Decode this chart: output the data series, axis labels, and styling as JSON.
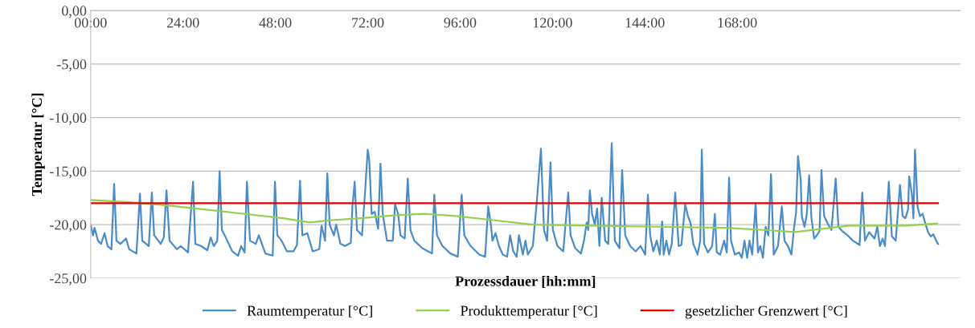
{
  "chart_data": {
    "type": "line",
    "xlabel": "Prozessdauer [hh:mm]",
    "ylabel": "Temperatur [°C]",
    "xlim": [
      0,
      226
    ],
    "xticks": [
      {
        "value": 0,
        "label": "00:00"
      },
      {
        "value": 24,
        "label": "24:00"
      },
      {
        "value": 48,
        "label": "48:00"
      },
      {
        "value": 72,
        "label": "72:00"
      },
      {
        "value": 96,
        "label": "96:00"
      },
      {
        "value": 120,
        "label": "120:00"
      },
      {
        "value": 144,
        "label": "144:00"
      },
      {
        "value": 168,
        "label": "168:00"
      }
    ],
    "ylim": [
      -25,
      0
    ],
    "yticks": [
      {
        "value": 0,
        "label": "0,00"
      },
      {
        "value": -5,
        "label": "-5,00"
      },
      {
        "value": -10,
        "label": "-10,00"
      },
      {
        "value": -15,
        "label": "-15,00"
      },
      {
        "value": -20,
        "label": "-20,00"
      },
      {
        "value": -25,
        "label": "-25,00"
      }
    ],
    "grid": "y",
    "legend": "bottom",
    "marker": "none",
    "line_style": "solid",
    "series": [
      {
        "name": "Raumtemperatur [°C]",
        "color": "#4a8cc8",
        "x": [
          0,
          0.6,
          1.0,
          1.9,
          2.7,
          3.6,
          4.4,
          5.4,
          6.1,
          6.7,
          7.7,
          9.2,
          10.0,
          11.9,
          12.8,
          13.4,
          15.1,
          15.9,
          16.5,
          18.2,
          19.0,
          19.7,
          20.5,
          22.4,
          23.4,
          25.3,
          26.6,
          27.2,
          28.7,
          30.3,
          31.2,
          32.0,
          32.9,
          33.5,
          34.1,
          35.1,
          36.8,
          38.3,
          39.1,
          40.0,
          40.6,
          41.4,
          42.9,
          43.7,
          45.4,
          47.3,
          47.9,
          48.5,
          49.6,
          51.0,
          52.7,
          53.6,
          54.4,
          55.0,
          56.3,
          57.7,
          59.4,
          60.0,
          60.9,
          61.5,
          62.1,
          63.2,
          63.8,
          64.9,
          66.1,
          67.6,
          68.0,
          68.6,
          69.2,
          70.5,
          71.3,
          72.0,
          72.4,
          73.0,
          73.8,
          74.7,
          75.3,
          75.9,
          77.0,
          78.5,
          79.1,
          79.9,
          80.5,
          81.6,
          82.4,
          83.1,
          84.1,
          86.2,
          87.7,
          88.7,
          89.3,
          90.0,
          91.4,
          93.5,
          95.4,
          96.4,
          97.1,
          98.7,
          101.0,
          102.5,
          103.3,
          104.0,
          104.4,
          105.2,
          106.1,
          107.1,
          108.2,
          109.0,
          109.8,
          110.7,
          111.3,
          112.3,
          113.0,
          113.6,
          114.9,
          115.9,
          117.0,
          117.8,
          118.6,
          119.5,
          120.1,
          121.3,
          122.8,
          124.1,
          124.7,
          125.9,
          127.4,
          128.2,
          128.9,
          129.3,
          129.7,
          130.3,
          131.0,
          131.6,
          132.2,
          132.8,
          133.7,
          134.5,
          135.4,
          136.2,
          137.4,
          138.1,
          138.9,
          140.2,
          141.6,
          142.9,
          144.1,
          144.8,
          145.4,
          146.2,
          147.1,
          147.9,
          148.5,
          148.9,
          149.6,
          150.3,
          151.0,
          151.9,
          152.8,
          153.5,
          154.5,
          155.2,
          155.9,
          156.6,
          157.7,
          158.4,
          158.8,
          159.4,
          160.4,
          161.5,
          162.2,
          162.7,
          163.6,
          164.6,
          165.3,
          165.9,
          166.4,
          167.4,
          168.5,
          169.2,
          169.9,
          170.6,
          171.2,
          171.9,
          172.8,
          173.4,
          174.0,
          174.7,
          175.4,
          176.1,
          176.8,
          177.5,
          178.6,
          179.6,
          180.3,
          181.2,
          182.1,
          182.8,
          183.3,
          183.8,
          184.5,
          184.8,
          185.5,
          186.1,
          186.7,
          187.3,
          188.0,
          188.7,
          189.4,
          189.9,
          190.6,
          191.5,
          192.5,
          193.6,
          194.3,
          195.3,
          196.7,
          198.1,
          199.8,
          200.5,
          201.2,
          202.3,
          203.7,
          204.4,
          205.1,
          205.8,
          206.4,
          207.4,
          208.2,
          209.2,
          210.3,
          211.0,
          211.7,
          212.4,
          212.7,
          213.4,
          213.8,
          214.2,
          214.9,
          215.5,
          216.2,
          216.9,
          217.6,
          218.3,
          219.0,
          219.7,
          220.2
        ],
        "values": [
          -20.0,
          -21.0,
          -20.3,
          -21.5,
          -21.8,
          -20.8,
          -22.0,
          -22.3,
          -16.2,
          -21.5,
          -21.8,
          -21.3,
          -22.3,
          -22.7,
          -17.1,
          -21.5,
          -22.0,
          -17.0,
          -21.0,
          -21.8,
          -21.2,
          -16.8,
          -21.5,
          -22.3,
          -22.0,
          -22.6,
          -16.0,
          -21.8,
          -22.0,
          -22.4,
          -21.2,
          -22.0,
          -21.5,
          -15.0,
          -20.5,
          -21.2,
          -22.5,
          -22.9,
          -22.0,
          -22.6,
          -16.0,
          -21.5,
          -21.8,
          -21.0,
          -22.7,
          -22.9,
          -16.0,
          -21.0,
          -21.5,
          -22.5,
          -22.5,
          -21.9,
          -15.9,
          -21.0,
          -20.8,
          -22.5,
          -22.3,
          -20.1,
          -21.5,
          -15.2,
          -20.0,
          -21.0,
          -20.0,
          -21.8,
          -22.0,
          -21.7,
          -18.4,
          -16.0,
          -20.5,
          -21.0,
          -17.0,
          -13.0,
          -14.0,
          -19.0,
          -18.8,
          -20.4,
          -14.3,
          -19.0,
          -21.5,
          -21.5,
          -18.1,
          -19.0,
          -21.0,
          -21.3,
          -15.7,
          -20.5,
          -21.5,
          -22.2,
          -22.5,
          -22.7,
          -17.2,
          -21.0,
          -22.0,
          -22.7,
          -23.0,
          -17.2,
          -21.0,
          -22.0,
          -22.8,
          -23.0,
          -18.3,
          -20.0,
          -21.5,
          -20.8,
          -22.0,
          -22.8,
          -23.0,
          -21.0,
          -22.5,
          -23.0,
          -21.0,
          -22.8,
          -21.5,
          -22.8,
          -22.0,
          -18.0,
          -12.9,
          -20.5,
          -21.5,
          -14.2,
          -20.5,
          -22.0,
          -22.5,
          -17.0,
          -21.0,
          -22.2,
          -22.7,
          -21.5,
          -19.8,
          -20.5,
          -16.8,
          -19.0,
          -20.0,
          -18.5,
          -22.0,
          -17.5,
          -21.5,
          -21.8,
          -12.4,
          -21.5,
          -22.2,
          -14.9,
          -21.0,
          -22.0,
          -22.5,
          -22.0,
          -22.8,
          -17.2,
          -21.0,
          -22.5,
          -21.5,
          -22.8,
          -19.7,
          -22.8,
          -21.5,
          -22.8,
          -21.8,
          -17.0,
          -22.0,
          -21.9,
          -18.1,
          -19.2,
          -19.9,
          -21.8,
          -22.8,
          -21.5,
          -13.0,
          -21.8,
          -22.6,
          -22.0,
          -19.0,
          -22.6,
          -22.8,
          -21.5,
          -22.6,
          -15.6,
          -21.5,
          -22.8,
          -22.6,
          -23.1,
          -21.5,
          -23.1,
          -21.5,
          -22.8,
          -18.0,
          -22.6,
          -22.0,
          -23.1,
          -20.2,
          -21.0,
          -15.3,
          -22.8,
          -22.0,
          -18.3,
          -21.5,
          -22.0,
          -22.8,
          -20.2,
          -18.9,
          -13.6,
          -15.8,
          -19.2,
          -20.2,
          -19.0,
          -15.4,
          -19.4,
          -21.3,
          -21.0,
          -20.6,
          -14.9,
          -19.2,
          -19.9,
          -20.5,
          -15.7,
          -20.2,
          -20.6,
          -21.0,
          -21.5,
          -21.9,
          -17.0,
          -21.5,
          -20.7,
          -21.3,
          -20.2,
          -22.0,
          -21.3,
          -22.0,
          -16.0,
          -21.1,
          -21.5,
          -16.3,
          -19.2,
          -19.4,
          -18.6,
          -15.5,
          -17.1,
          -19.4,
          -13.0,
          -18.4,
          -19.2,
          -19.0,
          -19.9,
          -20.7,
          -21.1,
          -20.9,
          -21.5,
          -21.8
        ]
      },
      {
        "name": "Produkttemperatur [°C]",
        "color": "#92d050",
        "x": [
          0,
          10,
          20,
          30,
          40,
          50,
          57,
          62,
          70,
          80,
          87,
          95,
          105,
          115,
          130,
          148,
          165,
          175,
          183,
          190,
          197,
          205,
          212,
          220
        ],
        "values": [
          -17.7,
          -17.9,
          -18.2,
          -18.6,
          -19.0,
          -19.4,
          -19.8,
          -19.6,
          -19.4,
          -19.1,
          -19.0,
          -19.2,
          -19.6,
          -20.0,
          -20.1,
          -20.2,
          -20.3,
          -20.5,
          -20.7,
          -20.4,
          -20.1,
          -20.1,
          -20.1,
          -19.9
        ]
      },
      {
        "name": "gesetzlicher Grenzwert [°C]",
        "color": "#e00000",
        "x": [
          0,
          220.2
        ],
        "values": [
          -18,
          -18
        ]
      }
    ]
  }
}
